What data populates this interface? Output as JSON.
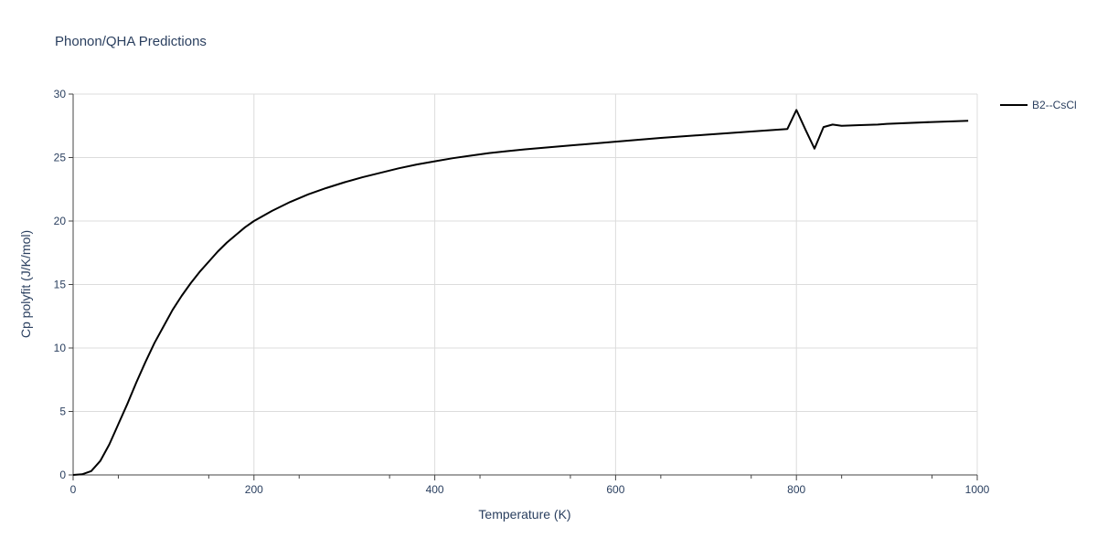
{
  "chart_data": {
    "type": "line",
    "title": "Phonon/QHA Predictions",
    "xlabel": "Temperature (K)",
    "ylabel": "Cp polyfit (J/K/mol)",
    "xlim": [
      0,
      1000
    ],
    "ylim": [
      0,
      30
    ],
    "xticks": [
      0,
      200,
      400,
      600,
      800,
      1000
    ],
    "yticks": [
      0,
      5,
      10,
      15,
      20,
      25,
      30
    ],
    "grid": true,
    "legend_position": "top-right",
    "series": [
      {
        "name": "B2--CsCl",
        "color": "#000000",
        "x": [
          0,
          10,
          20,
          30,
          40,
          50,
          60,
          70,
          80,
          90,
          100,
          110,
          120,
          130,
          140,
          150,
          160,
          170,
          180,
          190,
          200,
          220,
          240,
          260,
          280,
          300,
          320,
          340,
          360,
          380,
          400,
          420,
          440,
          460,
          480,
          500,
          550,
          600,
          650,
          700,
          750,
          790,
          800,
          810,
          820,
          830,
          840,
          850,
          870,
          890,
          900,
          950,
          990
        ],
        "y": [
          0,
          0.05,
          0.3,
          1.1,
          2.4,
          4.0,
          5.6,
          7.3,
          8.9,
          10.4,
          11.7,
          13.0,
          14.1,
          15.1,
          16.0,
          16.8,
          17.6,
          18.3,
          18.9,
          19.5,
          20.0,
          20.8,
          21.5,
          22.1,
          22.6,
          23.05,
          23.45,
          23.8,
          24.15,
          24.45,
          24.7,
          24.95,
          25.15,
          25.35,
          25.5,
          25.65,
          25.95,
          26.25,
          26.55,
          26.8,
          27.05,
          27.25,
          28.75,
          27.2,
          25.7,
          27.4,
          27.6,
          27.5,
          27.55,
          27.6,
          27.65,
          27.8,
          27.9
        ]
      }
    ]
  }
}
